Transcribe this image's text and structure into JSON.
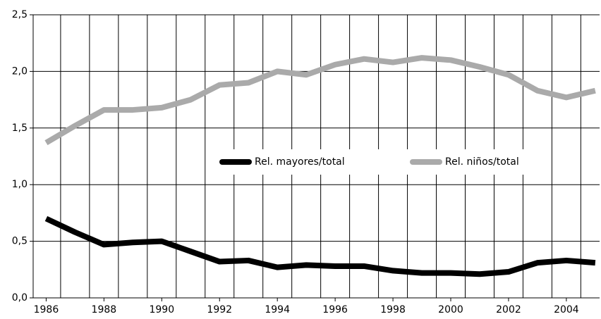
{
  "chart_data": {
    "type": "line",
    "x": [
      1986,
      1987,
      1988,
      1989,
      1990,
      1991,
      1992,
      1993,
      1994,
      1995,
      1996,
      1997,
      1998,
      1999,
      2000,
      2001,
      2002,
      2003,
      2004,
      2005
    ],
    "series": [
      {
        "name": "Rel. mayores/total",
        "color": "#000000",
        "values": [
          0.7,
          0.58,
          0.47,
          0.49,
          0.5,
          0.41,
          0.32,
          0.33,
          0.27,
          0.29,
          0.28,
          0.28,
          0.24,
          0.22,
          0.22,
          0.21,
          0.23,
          0.31,
          0.33,
          0.31
        ]
      },
      {
        "name": "Rel. niños/total",
        "color": "#aaaaaa",
        "values": [
          1.37,
          1.52,
          1.66,
          1.66,
          1.68,
          1.75,
          1.88,
          1.9,
          2.0,
          1.97,
          2.06,
          2.11,
          2.08,
          2.12,
          2.1,
          2.04,
          1.97,
          1.83,
          1.77,
          1.83
        ]
      }
    ],
    "xlim": [
      1985.55,
      2005.15
    ],
    "xticks": [
      1986,
      1988,
      1990,
      1992,
      1994,
      1996,
      1998,
      2000,
      2002,
      2004
    ],
    "ylim": [
      0,
      2.5
    ],
    "yticks": [
      {
        "value": 0,
        "label": "0,0"
      },
      {
        "value": 0.5,
        "label": "0,5"
      },
      {
        "value": 1,
        "label": "1,0"
      },
      {
        "value": 1.5,
        "label": "1,5"
      },
      {
        "value": 2,
        "label": "2,0"
      },
      {
        "value": 2.5,
        "label": "2,5"
      }
    ],
    "grid": true,
    "legend": "center"
  }
}
